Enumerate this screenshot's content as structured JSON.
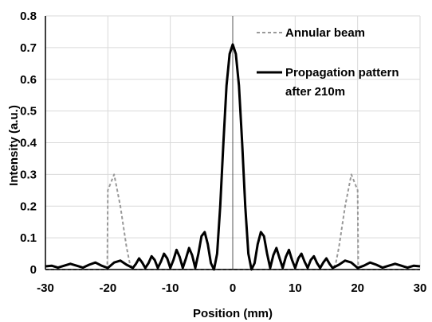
{
  "chart_data": {
    "type": "line",
    "title": "",
    "xlabel": "Position (mm)",
    "ylabel": "Intensity (a.u.)",
    "xlim": [
      -30,
      30
    ],
    "ylim": [
      0,
      0.8
    ],
    "xticks": [
      "-30",
      "-20",
      "-10",
      "0",
      "10",
      "20",
      "30"
    ],
    "yticks": [
      "0",
      "0.1",
      "0.2",
      "0.3",
      "0.4",
      "0.5",
      "0.6",
      "0.7",
      "0.8"
    ],
    "grid": true,
    "legend_position": "top-right",
    "series": [
      {
        "name": "Annular beam",
        "style": "dashed",
        "color": "#999999",
        "x": [
          -30,
          -20.1,
          -20.0,
          -19.0,
          -18.0,
          -17.0,
          -16.5,
          -16.0,
          16.0,
          16.5,
          17.0,
          18.0,
          19.0,
          20.0,
          20.1,
          30
        ],
        "y": [
          0,
          0,
          0.25,
          0.3,
          0.2,
          0.07,
          0.02,
          0,
          0,
          0.02,
          0.07,
          0.2,
          0.3,
          0.25,
          0,
          0
        ]
      },
      {
        "name": "Propagation pattern after 210m",
        "style": "solid",
        "color": "#000000",
        "x": [
          -30,
          -29,
          -28,
          -27,
          -26,
          -25,
          -24,
          -23,
          -22,
          -21,
          -20,
          -19,
          -18,
          -17,
          -16,
          -15.5,
          -15,
          -14.5,
          -14,
          -13.5,
          -13,
          -12.5,
          -12,
          -11.5,
          -11,
          -10.5,
          -10,
          -9.5,
          -9,
          -8.5,
          -8,
          -7.5,
          -7,
          -6.5,
          -6,
          -5.5,
          -5,
          -4.5,
          -4,
          -3.5,
          -3,
          -2.5,
          -2,
          -1.5,
          -1,
          -0.5,
          0,
          0.5,
          1,
          1.5,
          2,
          2.5,
          3,
          3.5,
          4,
          4.5,
          5,
          5.5,
          6,
          6.5,
          7,
          7.5,
          8,
          8.5,
          9,
          9.5,
          10,
          10.5,
          11,
          11.5,
          12,
          12.5,
          13,
          13.5,
          14,
          14.5,
          15,
          15.5,
          16,
          17,
          18,
          19,
          20,
          21,
          22,
          23,
          24,
          25,
          26,
          27,
          28,
          29,
          30
        ],
        "y": [
          0.01,
          0.012,
          0.006,
          0.012,
          0.018,
          0.012,
          0.006,
          0.015,
          0.022,
          0.012,
          0.005,
          0.022,
          0.028,
          0.015,
          0.005,
          0.018,
          0.035,
          0.022,
          0.005,
          0.02,
          0.042,
          0.03,
          0.005,
          0.025,
          0.05,
          0.035,
          0.005,
          0.03,
          0.062,
          0.04,
          0.005,
          0.035,
          0.068,
          0.045,
          0.005,
          0.05,
          0.105,
          0.118,
          0.08,
          0.02,
          0.0,
          0.05,
          0.2,
          0.4,
          0.58,
          0.68,
          0.71,
          0.68,
          0.58,
          0.4,
          0.2,
          0.05,
          0.0,
          0.02,
          0.08,
          0.118,
          0.105,
          0.05,
          0.005,
          0.045,
          0.068,
          0.035,
          0.005,
          0.04,
          0.062,
          0.03,
          0.005,
          0.035,
          0.05,
          0.025,
          0.005,
          0.03,
          0.042,
          0.02,
          0.005,
          0.022,
          0.035,
          0.018,
          0.005,
          0.015,
          0.028,
          0.022,
          0.005,
          0.012,
          0.022,
          0.015,
          0.006,
          0.012,
          0.018,
          0.012,
          0.006,
          0.012,
          0.01
        ]
      }
    ],
    "legend": [
      "Annular beam",
      "Propagation pattern",
      "after 210m"
    ]
  }
}
